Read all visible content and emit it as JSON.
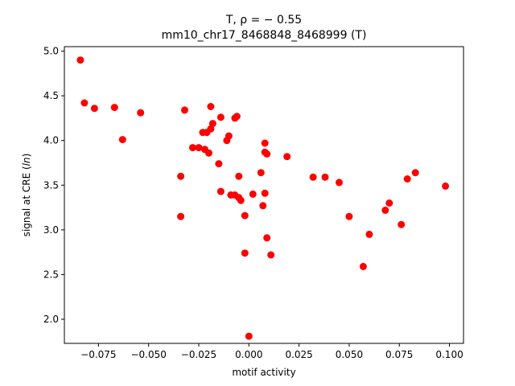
{
  "chart_data": {
    "type": "scatter",
    "title_line1": "T, ρ = − 0.55",
    "title_line2": "mm10_chr17_8468848_8468999 (T)",
    "xlabel": "motif activity",
    "ylabel": "signal at CRE (ln)",
    "xlim": [
      -0.092,
      0.107
    ],
    "ylim": [
      1.73,
      5.05
    ],
    "x_ticks": [
      -0.075,
      -0.05,
      -0.025,
      0.0,
      0.025,
      0.05,
      0.075,
      0.1
    ],
    "x_tick_labels": [
      "−0.075",
      "−0.050",
      "−0.025",
      "0.000",
      "0.025",
      "0.050",
      "0.075",
      "0.100"
    ],
    "y_ticks": [
      2.0,
      2.5,
      3.0,
      3.5,
      4.0,
      4.5,
      5.0
    ],
    "y_tick_labels": [
      "2.0",
      "2.5",
      "3.0",
      "3.5",
      "4.0",
      "4.5",
      "5.0"
    ],
    "marker_color": "#ff0000",
    "grid": false,
    "points": [
      {
        "x": -0.084,
        "y": 4.9
      },
      {
        "x": -0.082,
        "y": 4.42
      },
      {
        "x": -0.077,
        "y": 4.36
      },
      {
        "x": -0.067,
        "y": 4.37
      },
      {
        "x": -0.063,
        "y": 4.01
      },
      {
        "x": -0.054,
        "y": 4.31
      },
      {
        "x": -0.034,
        "y": 3.6
      },
      {
        "x": -0.034,
        "y": 3.15
      },
      {
        "x": -0.032,
        "y": 4.34
      },
      {
        "x": -0.028,
        "y": 3.92
      },
      {
        "x": -0.025,
        "y": 3.92
      },
      {
        "x": -0.023,
        "y": 4.09
      },
      {
        "x": -0.022,
        "y": 3.9
      },
      {
        "x": -0.021,
        "y": 4.09
      },
      {
        "x": -0.02,
        "y": 3.86
      },
      {
        "x": -0.019,
        "y": 4.38
      },
      {
        "x": -0.019,
        "y": 4.13
      },
      {
        "x": -0.018,
        "y": 4.19
      },
      {
        "x": -0.015,
        "y": 3.74
      },
      {
        "x": -0.014,
        "y": 4.26
      },
      {
        "x": -0.014,
        "y": 3.43
      },
      {
        "x": -0.011,
        "y": 4.0
      },
      {
        "x": -0.01,
        "y": 4.05
      },
      {
        "x": -0.009,
        "y": 3.39
      },
      {
        "x": -0.007,
        "y": 3.39
      },
      {
        "x": -0.007,
        "y": 4.25
      },
      {
        "x": -0.006,
        "y": 4.27
      },
      {
        "x": -0.005,
        "y": 3.36
      },
      {
        "x": -0.005,
        "y": 3.6
      },
      {
        "x": -0.004,
        "y": 3.33
      },
      {
        "x": -0.002,
        "y": 2.74
      },
      {
        "x": -0.002,
        "y": 3.16
      },
      {
        "x": 0.0,
        "y": 1.81
      },
      {
        "x": 0.002,
        "y": 3.4
      },
      {
        "x": 0.006,
        "y": 3.64
      },
      {
        "x": 0.007,
        "y": 3.27
      },
      {
        "x": 0.008,
        "y": 3.41
      },
      {
        "x": 0.008,
        "y": 3.87
      },
      {
        "x": 0.008,
        "y": 3.97
      },
      {
        "x": 0.009,
        "y": 3.85
      },
      {
        "x": 0.009,
        "y": 2.91
      },
      {
        "x": 0.011,
        "y": 2.72
      },
      {
        "x": 0.019,
        "y": 3.82
      },
      {
        "x": 0.032,
        "y": 3.59
      },
      {
        "x": 0.038,
        "y": 3.59
      },
      {
        "x": 0.045,
        "y": 3.53
      },
      {
        "x": 0.05,
        "y": 3.15
      },
      {
        "x": 0.057,
        "y": 2.59
      },
      {
        "x": 0.06,
        "y": 2.95
      },
      {
        "x": 0.068,
        "y": 3.22
      },
      {
        "x": 0.07,
        "y": 3.3
      },
      {
        "x": 0.076,
        "y": 3.06
      },
      {
        "x": 0.079,
        "y": 3.57
      },
      {
        "x": 0.083,
        "y": 3.64
      },
      {
        "x": 0.098,
        "y": 3.49
      }
    ]
  }
}
